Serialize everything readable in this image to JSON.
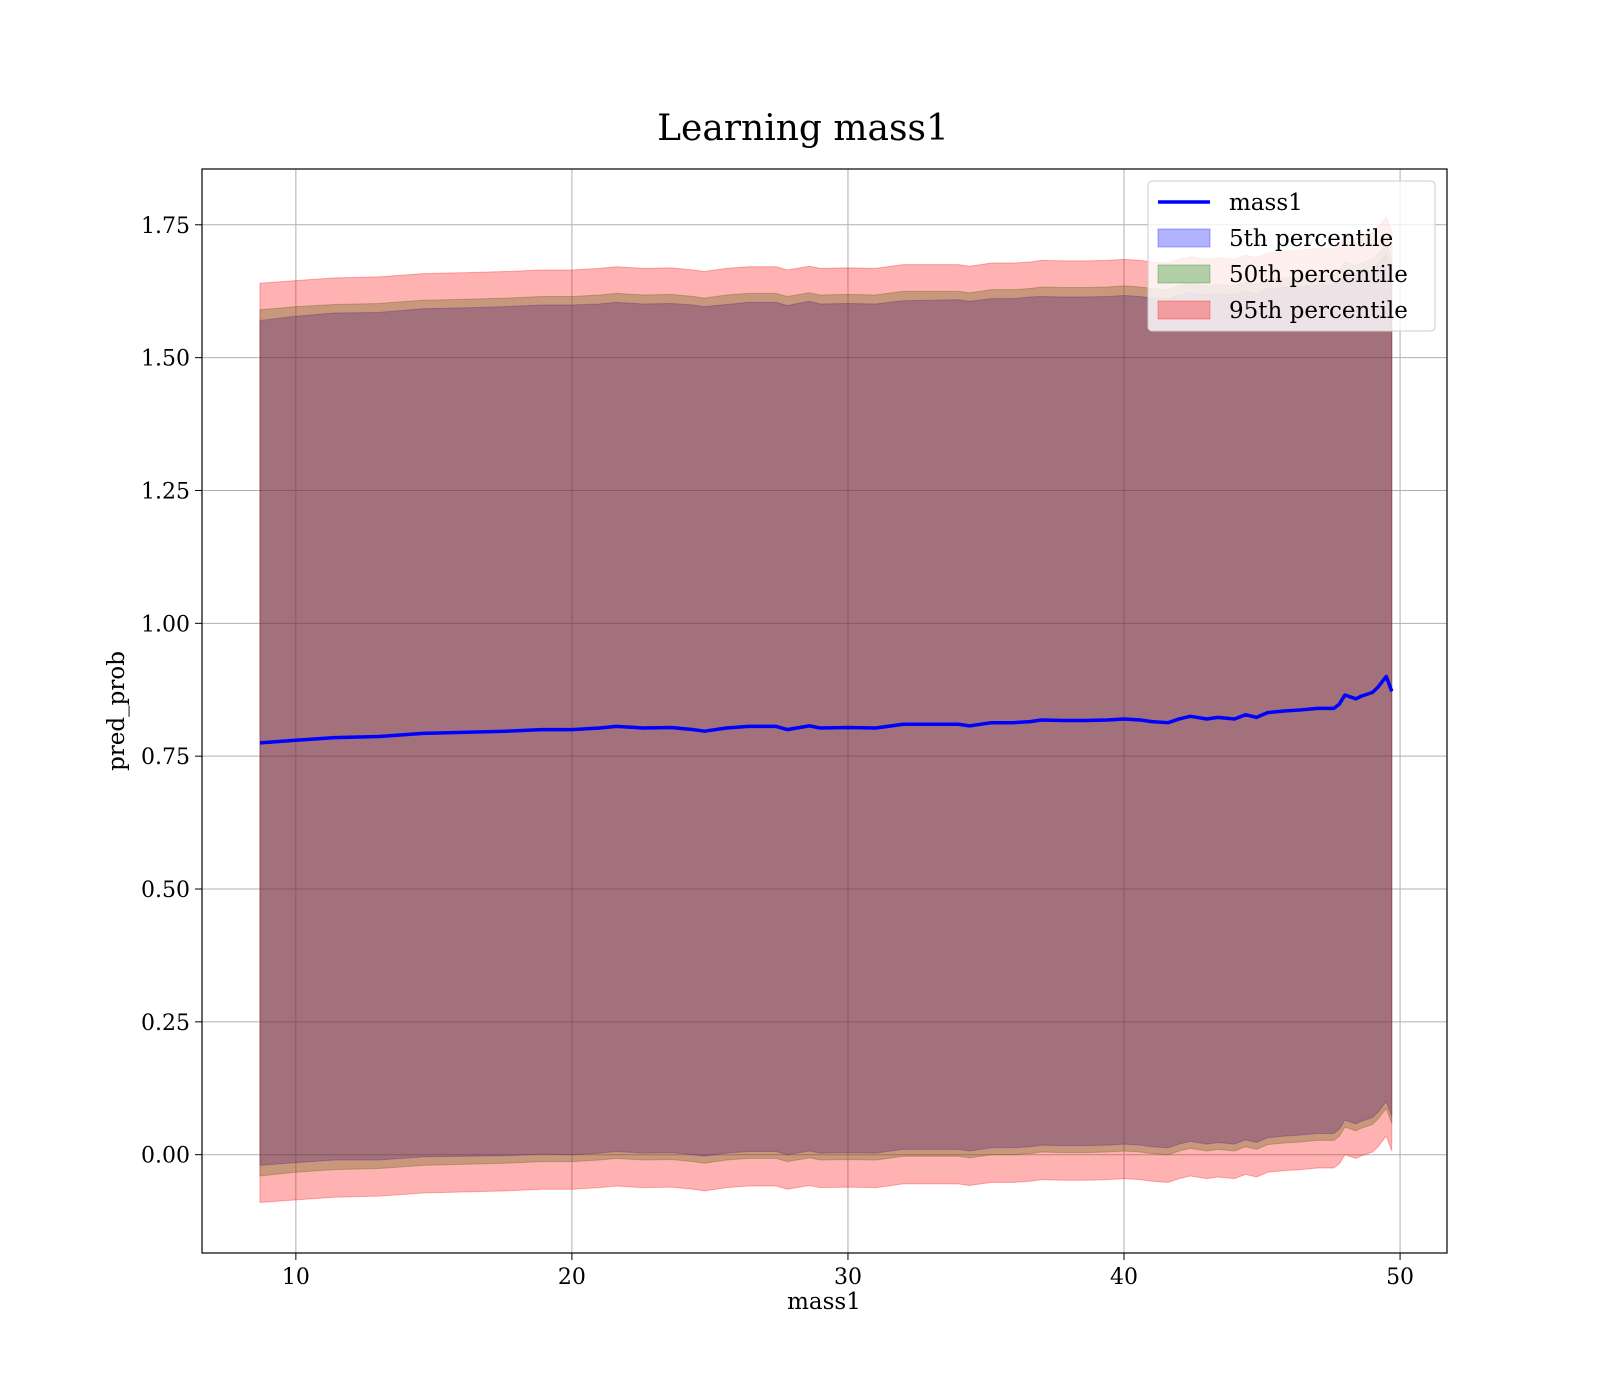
{
  "chart_data": {
    "type": "area",
    "title": "Learning mass1",
    "xlabel": "mass1",
    "ylabel": "pred_prob",
    "xlim": [
      6.6,
      51.7
    ],
    "ylim": [
      -0.185,
      1.855
    ],
    "xticks": [
      10,
      20,
      30,
      40,
      50
    ],
    "xtick_labels": [
      "10",
      "20",
      "30",
      "40",
      "50"
    ],
    "yticks": [
      0.0,
      0.25,
      0.5,
      0.75,
      1.0,
      1.25,
      1.5,
      1.75
    ],
    "ytick_labels": [
      "0.00",
      "0.25",
      "0.50",
      "0.75",
      "1.00",
      "1.25",
      "1.50",
      "1.75"
    ],
    "grid": true,
    "legend_position": "top-right",
    "legend": [
      {
        "label": "mass1",
        "kind": "line",
        "color": "#0000ff"
      },
      {
        "label": "5th percentile",
        "kind": "patch",
        "color": "#0000ff"
      },
      {
        "label": "50th percentile",
        "kind": "patch",
        "color": "#008000"
      },
      {
        "label": "95th percentile",
        "kind": "patch",
        "color": "#ff0000"
      }
    ],
    "x": [
      8.7,
      10.0,
      11.4,
      13.0,
      14.6,
      16.2,
      17.6,
      18.9,
      20.0,
      21.0,
      21.6,
      22.6,
      23.6,
      24.4,
      24.8,
      25.6,
      26.4,
      27.4,
      27.8,
      28.6,
      29.0,
      30.0,
      31.0,
      32.0,
      33.0,
      34.0,
      34.4,
      35.2,
      36.0,
      36.6,
      37.0,
      37.8,
      38.6,
      39.4,
      40.0,
      40.6,
      41.0,
      41.6,
      42.0,
      42.4,
      43.0,
      43.4,
      44.0,
      44.4,
      44.8,
      45.2,
      45.8,
      46.4,
      47.0,
      47.6,
      47.8,
      48.0,
      48.4,
      48.6,
      49.0,
      49.2,
      49.5,
      49.7
    ],
    "series": [
      {
        "name": "mass1",
        "color": "#0000ff",
        "values": [
          0.775,
          0.78,
          0.785,
          0.787,
          0.793,
          0.795,
          0.797,
          0.8,
          0.8,
          0.803,
          0.806,
          0.803,
          0.804,
          0.8,
          0.797,
          0.803,
          0.806,
          0.806,
          0.8,
          0.807,
          0.803,
          0.804,
          0.803,
          0.81,
          0.81,
          0.81,
          0.807,
          0.813,
          0.813,
          0.815,
          0.818,
          0.817,
          0.817,
          0.818,
          0.82,
          0.818,
          0.815,
          0.813,
          0.82,
          0.825,
          0.82,
          0.823,
          0.82,
          0.828,
          0.823,
          0.832,
          0.835,
          0.837,
          0.84,
          0.84,
          0.848,
          0.865,
          0.858,
          0.863,
          0.87,
          0.88,
          0.9,
          0.872
        ]
      }
    ],
    "bands": [
      {
        "name": "5th percentile",
        "color": "#0000ff",
        "upper": [
          1.57,
          1.578,
          1.584,
          1.585,
          1.592,
          1.594,
          1.596,
          1.599,
          1.599,
          1.601,
          1.604,
          1.601,
          1.602,
          1.599,
          1.596,
          1.6,
          1.604,
          1.604,
          1.598,
          1.606,
          1.601,
          1.602,
          1.601,
          1.607,
          1.608,
          1.609,
          1.606,
          1.611,
          1.611,
          1.614,
          1.615,
          1.614,
          1.614,
          1.615,
          1.617,
          1.615,
          1.612,
          1.61,
          1.618,
          1.622,
          1.618,
          1.62,
          1.618,
          1.625,
          1.62,
          1.63,
          1.632,
          1.634,
          1.637,
          1.637,
          1.645,
          1.66,
          1.655,
          1.66,
          1.666,
          1.676,
          1.695,
          1.668
        ],
        "lower": [
          -0.02,
          -0.015,
          -0.01,
          -0.01,
          -0.004,
          -0.003,
          -0.002,
          0.001,
          0.0,
          0.003,
          0.006,
          0.003,
          0.004,
          0.0,
          -0.003,
          0.003,
          0.006,
          0.006,
          0.0,
          0.007,
          0.003,
          0.004,
          0.003,
          0.01,
          0.01,
          0.01,
          0.007,
          0.013,
          0.013,
          0.015,
          0.018,
          0.017,
          0.017,
          0.018,
          0.02,
          0.018,
          0.015,
          0.013,
          0.02,
          0.025,
          0.02,
          0.023,
          0.02,
          0.028,
          0.023,
          0.032,
          0.035,
          0.037,
          0.04,
          0.04,
          0.048,
          0.065,
          0.058,
          0.063,
          0.07,
          0.08,
          0.1,
          0.072
        ]
      },
      {
        "name": "50th percentile",
        "color": "#008000",
        "upper": [
          1.59,
          1.596,
          1.6,
          1.602,
          1.608,
          1.61,
          1.612,
          1.615,
          1.615,
          1.618,
          1.621,
          1.618,
          1.619,
          1.615,
          1.612,
          1.618,
          1.621,
          1.621,
          1.615,
          1.622,
          1.618,
          1.619,
          1.618,
          1.625,
          1.625,
          1.625,
          1.622,
          1.628,
          1.628,
          1.63,
          1.633,
          1.632,
          1.632,
          1.633,
          1.635,
          1.633,
          1.63,
          1.628,
          1.635,
          1.64,
          1.635,
          1.638,
          1.635,
          1.643,
          1.638,
          1.647,
          1.65,
          1.652,
          1.655,
          1.655,
          1.663,
          1.68,
          1.673,
          1.678,
          1.685,
          1.695,
          1.715,
          1.687
        ],
        "lower": [
          -0.04,
          -0.033,
          -0.028,
          -0.026,
          -0.02,
          -0.018,
          -0.016,
          -0.013,
          -0.013,
          -0.01,
          -0.007,
          -0.01,
          -0.009,
          -0.013,
          -0.016,
          -0.01,
          -0.007,
          -0.007,
          -0.013,
          -0.006,
          -0.01,
          -0.009,
          -0.01,
          -0.003,
          -0.003,
          -0.003,
          -0.006,
          0.0,
          0.0,
          0.002,
          0.005,
          0.004,
          0.004,
          0.005,
          0.007,
          0.005,
          0.002,
          0.0,
          0.007,
          0.012,
          0.007,
          0.01,
          0.007,
          0.015,
          0.01,
          0.019,
          0.022,
          0.024,
          0.027,
          0.027,
          0.035,
          0.052,
          0.045,
          0.05,
          0.057,
          0.067,
          0.087,
          0.059
        ]
      },
      {
        "name": "95th percentile",
        "color": "#ff0000",
        "upper": [
          1.64,
          1.645,
          1.65,
          1.652,
          1.658,
          1.66,
          1.662,
          1.665,
          1.665,
          1.668,
          1.671,
          1.668,
          1.669,
          1.665,
          1.662,
          1.668,
          1.671,
          1.671,
          1.665,
          1.672,
          1.668,
          1.669,
          1.668,
          1.675,
          1.675,
          1.675,
          1.672,
          1.678,
          1.678,
          1.68,
          1.683,
          1.682,
          1.682,
          1.683,
          1.685,
          1.683,
          1.68,
          1.678,
          1.685,
          1.69,
          1.685,
          1.688,
          1.685,
          1.693,
          1.688,
          1.697,
          1.7,
          1.702,
          1.705,
          1.705,
          1.713,
          1.73,
          1.723,
          1.728,
          1.735,
          1.745,
          1.765,
          1.737
        ],
        "lower": [
          -0.09,
          -0.085,
          -0.08,
          -0.078,
          -0.072,
          -0.07,
          -0.068,
          -0.065,
          -0.065,
          -0.062,
          -0.059,
          -0.062,
          -0.061,
          -0.065,
          -0.068,
          -0.062,
          -0.059,
          -0.059,
          -0.065,
          -0.058,
          -0.062,
          -0.061,
          -0.062,
          -0.055,
          -0.055,
          -0.055,
          -0.058,
          -0.052,
          -0.052,
          -0.05,
          -0.047,
          -0.048,
          -0.048,
          -0.047,
          -0.045,
          -0.047,
          -0.05,
          -0.052,
          -0.045,
          -0.04,
          -0.045,
          -0.042,
          -0.045,
          -0.037,
          -0.042,
          -0.033,
          -0.03,
          -0.028,
          -0.025,
          -0.025,
          -0.017,
          0.0,
          -0.007,
          -0.002,
          0.005,
          0.015,
          0.035,
          0.007
        ]
      }
    ]
  }
}
